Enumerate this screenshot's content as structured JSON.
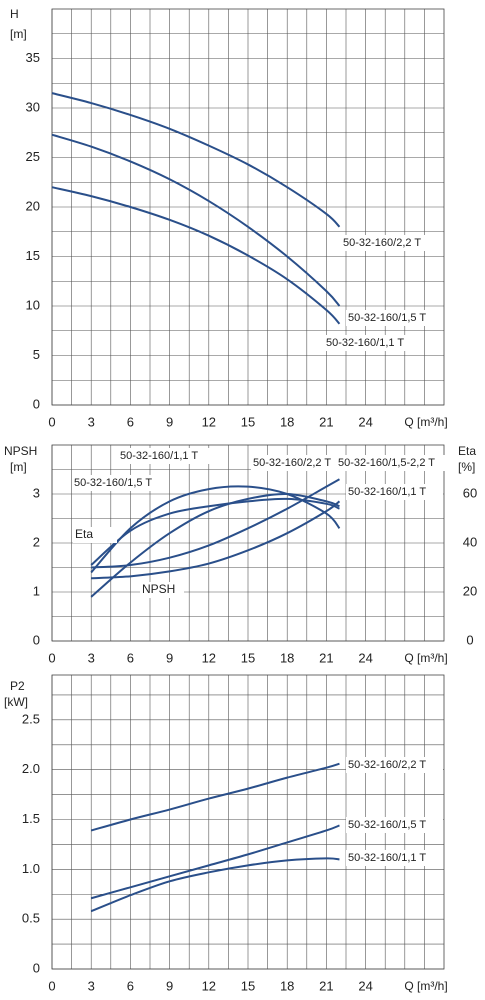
{
  "chart_data": [
    {
      "type": "line",
      "ylabel": "H",
      "yunit": "[m]",
      "xlabel": "Q [m³/h]",
      "x": [
        0,
        3,
        6,
        9,
        12,
        15,
        18,
        21,
        22
      ],
      "xlim": [
        0,
        30
      ],
      "xticks": [
        0,
        3,
        6,
        9,
        12,
        15,
        18,
        21,
        24
      ],
      "ylim": [
        0,
        40
      ],
      "yticks": [
        0,
        5,
        10,
        15,
        20,
        25,
        30,
        35
      ],
      "grid": true,
      "series": [
        {
          "name": "50-32-160/2,2 T",
          "color": "#2a4f8a",
          "values": [
            31.5,
            30.5,
            29.3,
            27.9,
            26.2,
            24.3,
            22.0,
            19.3,
            18.0
          ]
        },
        {
          "name": "50-32-160/1,5 T",
          "color": "#2a4f8a",
          "values": [
            27.3,
            26.1,
            24.6,
            22.8,
            20.6,
            18.0,
            15.0,
            11.5,
            10.0
          ]
        },
        {
          "name": "50-32-160/1,1 T",
          "color": "#2a4f8a",
          "values": [
            22.0,
            21.1,
            20.0,
            18.7,
            17.1,
            15.1,
            12.7,
            9.6,
            8.2
          ]
        }
      ]
    },
    {
      "type": "line",
      "ylabel": "NPSH",
      "yunit": "[m]",
      "y2label": "Eta",
      "y2unit": "[%]",
      "xlabel": "Q [m³/h]",
      "annotations": [
        "Eta",
        "NPSH"
      ],
      "x": [
        3,
        6,
        9,
        12,
        15,
        18,
        21,
        22
      ],
      "xlim": [
        0,
        30
      ],
      "xticks": [
        0,
        3,
        6,
        9,
        12,
        15,
        18,
        21,
        24
      ],
      "ylim": [
        0,
        4
      ],
      "yticks": [
        0,
        1,
        2,
        3
      ],
      "y2lim": [
        0,
        80
      ],
      "y2ticks": [
        0,
        20,
        40,
        60
      ],
      "grid": true,
      "series": [
        {
          "name": "50-32-160/1,1 T",
          "color": "#2a4f8a",
          "axis": "y2",
          "values": [
            28,
            46,
            57,
            62,
            63,
            60,
            52,
            46
          ]
        },
        {
          "name": "50-32-160/2,2 T",
          "color": "#2a4f8a",
          "axis": "y2",
          "values": [
            18,
            32,
            44,
            53,
            58,
            60,
            57,
            55
          ]
        },
        {
          "name": "50-32-160/1,5 T",
          "color": "#2a4f8a",
          "axis": "y2",
          "values": [
            31,
            45,
            52,
            55,
            57,
            58,
            56,
            54
          ]
        },
        {
          "name": "50-32-160/1,5-2,2 T",
          "color": "#2a4f8a",
          "values": [
            1.5,
            1.55,
            1.7,
            1.95,
            2.3,
            2.7,
            3.15,
            3.3
          ]
        },
        {
          "name": "50-32-160/1,1 T",
          "color": "#2a4f8a",
          "values": [
            1.28,
            1.32,
            1.42,
            1.58,
            1.85,
            2.2,
            2.65,
            2.85
          ]
        }
      ]
    },
    {
      "type": "line",
      "ylabel": "P2",
      "yunit": "[kW]",
      "xlabel": "Q [m³/h]",
      "x": [
        3,
        6,
        9,
        12,
        15,
        18,
        21,
        22
      ],
      "xlim": [
        0,
        30
      ],
      "xticks": [
        0,
        3,
        6,
        9,
        12,
        15,
        18,
        21,
        24
      ],
      "ylim": [
        0,
        2.95
      ],
      "yticks": [
        0,
        0.5,
        {
          "value": 1,
          "label": "1.0"
        },
        1.5,
        {
          "value": 2,
          "label": "2.0"
        },
        2.5
      ],
      "grid": true,
      "series": [
        {
          "name": "50-32-160/2,2 T",
          "color": "#2a4f8a",
          "values": [
            1.39,
            1.5,
            1.6,
            1.71,
            1.81,
            1.92,
            2.02,
            2.06
          ]
        },
        {
          "name": "50-32-160/1,5 T",
          "color": "#2a4f8a",
          "values": [
            0.71,
            0.82,
            0.93,
            1.04,
            1.15,
            1.27,
            1.39,
            1.44
          ]
        },
        {
          "name": "50-32-160/1,1 T",
          "color": "#2a4f8a",
          "values": [
            0.58,
            0.74,
            0.88,
            0.97,
            1.04,
            1.09,
            1.11,
            1.1
          ]
        }
      ]
    }
  ]
}
